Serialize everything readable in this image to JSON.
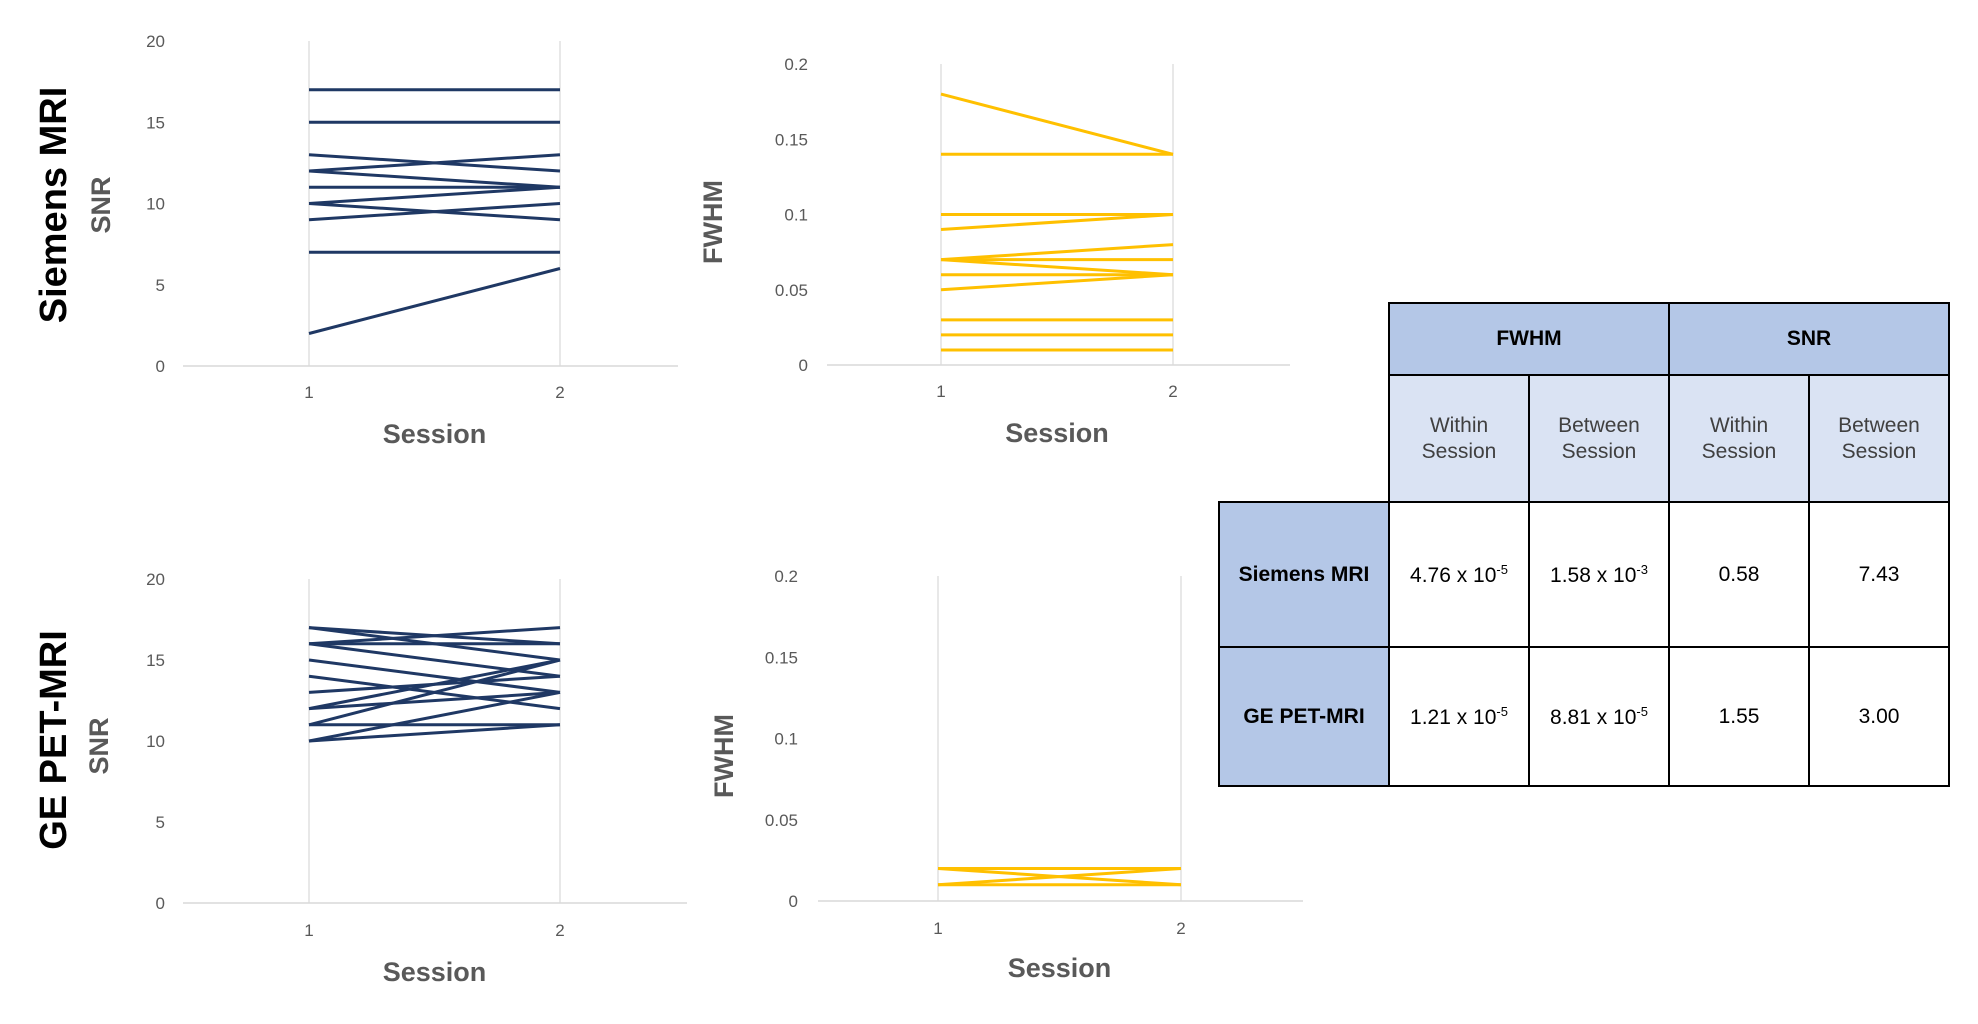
{
  "colors": {
    "snr": "#1f3864",
    "fwhm": "#ffc000",
    "grid": "#d9d9d9",
    "header_dark": "#b4c7e7",
    "header_light": "#dae3f3"
  },
  "row_labels": {
    "siemens": "Siemens MRI",
    "ge": "GE PET-MRI"
  },
  "chart_data": [
    {
      "id": "siemens_snr",
      "type": "line",
      "title": "",
      "xlabel": "Session",
      "ylabel": "SNR",
      "x": [
        1,
        2
      ],
      "x_tick_labels": [
        "1",
        "2"
      ],
      "ylim": [
        0,
        20
      ],
      "y_ticks": [
        0,
        5,
        10,
        15,
        20
      ],
      "y_tick_labels": [
        "0",
        "5",
        "10",
        "15",
        "20"
      ],
      "series": [
        {
          "name": "s1",
          "values": [
            17,
            17
          ]
        },
        {
          "name": "s2",
          "values": [
            15,
            15
          ]
        },
        {
          "name": "s3",
          "values": [
            13,
            12
          ]
        },
        {
          "name": "s4",
          "values": [
            12,
            13
          ]
        },
        {
          "name": "s5",
          "values": [
            12,
            11
          ]
        },
        {
          "name": "s6",
          "values": [
            11,
            11
          ]
        },
        {
          "name": "s7",
          "values": [
            10,
            11
          ]
        },
        {
          "name": "s8",
          "values": [
            10,
            9
          ]
        },
        {
          "name": "s9",
          "values": [
            9,
            10
          ]
        },
        {
          "name": "s10",
          "values": [
            7,
            7
          ]
        },
        {
          "name": "s11",
          "values": [
            2,
            6
          ]
        }
      ]
    },
    {
      "id": "siemens_fwhm",
      "type": "line",
      "title": "",
      "xlabel": "Session",
      "ylabel": "FWHM",
      "x": [
        1,
        2
      ],
      "x_tick_labels": [
        "1",
        "2"
      ],
      "ylim": [
        0,
        0.2
      ],
      "y_ticks": [
        0,
        0.05,
        0.1,
        0.15,
        0.2
      ],
      "y_tick_labels": [
        "0",
        "0.05",
        "0.1",
        "0.15",
        "0.2"
      ],
      "series": [
        {
          "name": "s1",
          "values": [
            0.18,
            0.14
          ]
        },
        {
          "name": "s2",
          "values": [
            0.14,
            0.14
          ]
        },
        {
          "name": "s3",
          "values": [
            0.1,
            0.1
          ]
        },
        {
          "name": "s4",
          "values": [
            0.09,
            0.1
          ]
        },
        {
          "name": "s5",
          "values": [
            0.07,
            0.08
          ]
        },
        {
          "name": "s6",
          "values": [
            0.07,
            0.06
          ]
        },
        {
          "name": "s7",
          "values": [
            0.07,
            0.07
          ]
        },
        {
          "name": "s8",
          "values": [
            0.06,
            0.06
          ]
        },
        {
          "name": "s9",
          "values": [
            0.05,
            0.06
          ]
        },
        {
          "name": "s10",
          "values": [
            0.03,
            0.03
          ]
        },
        {
          "name": "s11",
          "values": [
            0.02,
            0.02
          ]
        },
        {
          "name": "s12",
          "values": [
            0.01,
            0.01
          ]
        }
      ]
    },
    {
      "id": "ge_snr",
      "type": "line",
      "title": "",
      "xlabel": "Session",
      "ylabel": "SNR",
      "x": [
        1,
        2
      ],
      "x_tick_labels": [
        "1",
        "2"
      ],
      "ylim": [
        0,
        20
      ],
      "y_ticks": [
        0,
        5,
        10,
        15,
        20
      ],
      "y_tick_labels": [
        "0",
        "5",
        "10",
        "15",
        "20"
      ],
      "series": [
        {
          "name": "s1",
          "values": [
            17,
            16
          ]
        },
        {
          "name": "s2",
          "values": [
            17,
            15
          ]
        },
        {
          "name": "s3",
          "values": [
            16,
            17
          ]
        },
        {
          "name": "s4",
          "values": [
            16,
            14
          ]
        },
        {
          "name": "s5",
          "values": [
            16,
            16
          ]
        },
        {
          "name": "s6",
          "values": [
            15,
            13
          ]
        },
        {
          "name": "s7",
          "values": [
            14,
            12
          ]
        },
        {
          "name": "s8",
          "values": [
            13,
            14
          ]
        },
        {
          "name": "s9",
          "values": [
            12,
            15
          ]
        },
        {
          "name": "s10",
          "values": [
            12,
            13
          ]
        },
        {
          "name": "s11",
          "values": [
            11,
            11
          ]
        },
        {
          "name": "s12",
          "values": [
            11,
            15
          ]
        },
        {
          "name": "s13",
          "values": [
            10,
            13
          ]
        },
        {
          "name": "s14",
          "values": [
            10,
            11
          ]
        }
      ]
    },
    {
      "id": "ge_fwhm",
      "type": "line",
      "title": "",
      "xlabel": "Session",
      "ylabel": "FWHM",
      "x": [
        1,
        2
      ],
      "x_tick_labels": [
        "1",
        "2"
      ],
      "ylim": [
        0,
        0.2
      ],
      "y_ticks": [
        0,
        0.05,
        0.1,
        0.15,
        0.2
      ],
      "y_tick_labels": [
        "0",
        "0.05",
        "0.1",
        "0.15",
        "0.2"
      ],
      "series": [
        {
          "name": "s1",
          "values": [
            0.02,
            0.02
          ]
        },
        {
          "name": "s2",
          "values": [
            0.02,
            0.01
          ]
        },
        {
          "name": "s3",
          "values": [
            0.01,
            0.02
          ]
        },
        {
          "name": "s4",
          "values": [
            0.01,
            0.01
          ]
        }
      ]
    }
  ],
  "table": {
    "groups": [
      "FWHM",
      "SNR"
    ],
    "sub_headers": [
      "Within\nSession",
      "Between\nSession",
      "Within\nSession",
      "Between\nSession"
    ],
    "rows": [
      {
        "label": "Siemens MRI",
        "fwhm_within": "4.76 x 10",
        "fwhm_within_exp": "-5",
        "fwhm_between": "1.58 x 10",
        "fwhm_between_exp": "-3",
        "snr_within": "0.58",
        "snr_between": "7.43"
      },
      {
        "label": "GE PET-MRI",
        "fwhm_within": "1.21 x 10",
        "fwhm_within_exp": "-5",
        "fwhm_between": "8.81 x 10",
        "fwhm_between_exp": "-5",
        "snr_within": "1.55",
        "snr_between": "3.00"
      }
    ]
  }
}
